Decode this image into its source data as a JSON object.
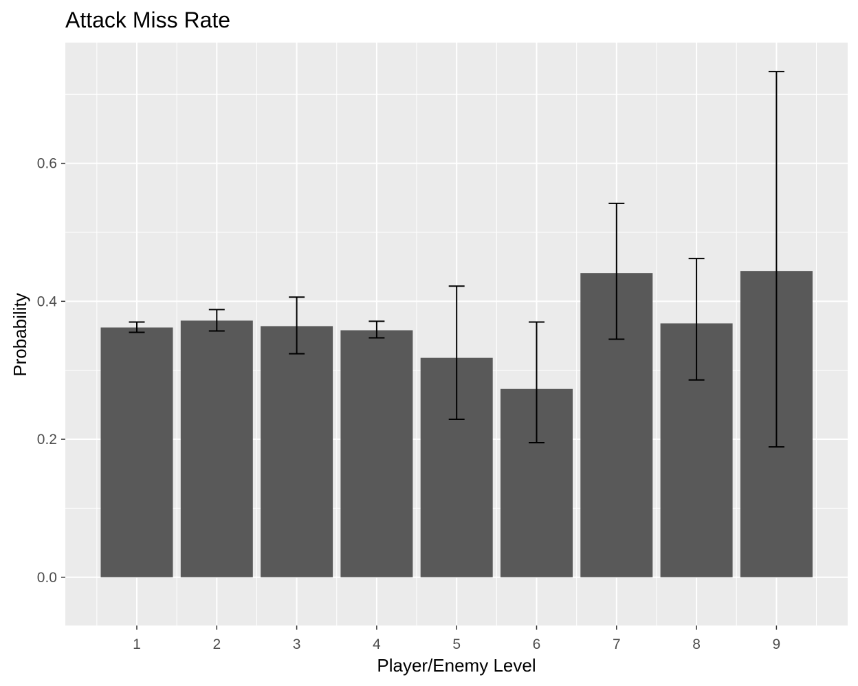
{
  "chart_data": {
    "type": "bar",
    "title": "Attack Miss Rate",
    "xlabel": "Player/Enemy Level",
    "ylabel": "Probability",
    "categories": [
      "1",
      "2",
      "3",
      "4",
      "5",
      "6",
      "7",
      "8",
      "9"
    ],
    "values": [
      0.362,
      0.372,
      0.364,
      0.358,
      0.318,
      0.273,
      0.441,
      0.368,
      0.444
    ],
    "error_low": [
      0.355,
      0.357,
      0.324,
      0.347,
      0.229,
      0.195,
      0.345,
      0.286,
      0.189
    ],
    "error_high": [
      0.37,
      0.388,
      0.406,
      0.371,
      0.422,
      0.37,
      0.542,
      0.462,
      0.733
    ],
    "ylim": [
      -0.07,
      0.775
    ],
    "y_ticks": [
      0.0,
      0.2,
      0.4,
      0.6
    ],
    "y_tick_labels": [
      "0.0",
      "0.2",
      "0.4",
      "0.6"
    ],
    "grid": true,
    "bar_color": "#595959",
    "panel_color": "#ebebeb"
  }
}
